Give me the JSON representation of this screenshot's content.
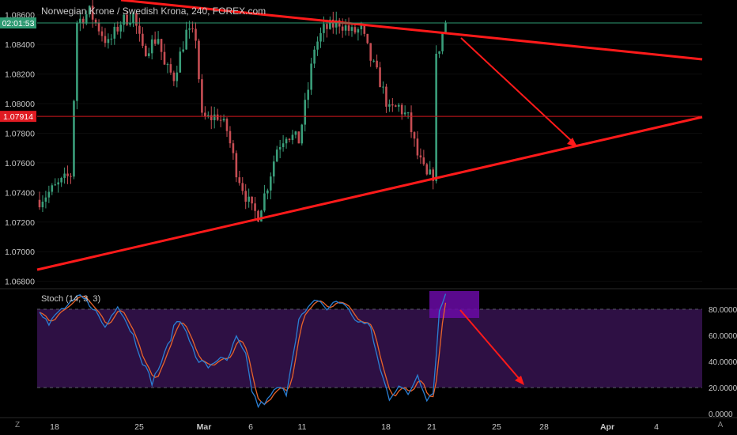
{
  "header": {
    "symbol_title": "Norwegian Krone / Swedish Krona, 240, FOREX.com"
  },
  "price_axis": {
    "ticks": [
      "1.08600",
      "1.08400",
      "1.08200",
      "1.08000",
      "1.07800",
      "1.07600",
      "1.07400",
      "1.07200",
      "1.07000",
      "1.06800"
    ],
    "countdown_label": "02:01:53",
    "marker_label": "1.07914",
    "marker_value": 1.07914,
    "last_price": 1.08545
  },
  "stoch_panel": {
    "title": "Stoch (14, 3, 3)",
    "ticks": [
      "80.0000",
      "60.0000",
      "40.0000",
      "20.0000",
      "0.0000"
    ]
  },
  "time_axis": {
    "labels": [
      "18",
      "25",
      "Mar",
      "6",
      "11",
      "18",
      "21",
      "25",
      "28",
      "Apr",
      "4"
    ]
  },
  "bottom_bar": {
    "left_button": "Z",
    "right_button": "A"
  },
  "colors": {
    "background": "#000000",
    "up_candle": "#3a9e7a",
    "down_candle": "#c64d53",
    "trendline": "#ff1a1a",
    "stoch_k": "#2a7fd4",
    "stoch_d": "#e8632a",
    "stoch_band": "#2e1044",
    "highlight_box": "#6a0aa6",
    "axis_text": "#c8c8c8",
    "countdown_bg": "#2e9a72",
    "marker_bg": "#e01b22"
  },
  "chart_data": {
    "type": "candlestick",
    "title": "Norwegian Krone / Swedish Krona, 240, FOREX.com",
    "x_labels": [
      "18",
      "25",
      "Mar",
      "6",
      "11",
      "18",
      "21",
      "25",
      "28",
      "Apr",
      "4"
    ],
    "ylim": [
      1.0675,
      1.087
    ],
    "anchors": [
      {
        "i": 0,
        "p": 1.0735
      },
      {
        "i": 6,
        "p": 1.0745
      },
      {
        "i": 10,
        "p": 1.0752
      },
      {
        "i": 12,
        "p": 1.0855
      },
      {
        "i": 16,
        "p": 1.0862
      },
      {
        "i": 22,
        "p": 1.084
      },
      {
        "i": 26,
        "p": 1.0855
      },
      {
        "i": 30,
        "p": 1.086
      },
      {
        "i": 33,
        "p": 1.0835
      },
      {
        "i": 38,
        "p": 1.0845
      },
      {
        "i": 40,
        "p": 1.0825
      },
      {
        "i": 43,
        "p": 1.0818
      },
      {
        "i": 47,
        "p": 1.0848
      },
      {
        "i": 50,
        "p": 1.0845
      },
      {
        "i": 52,
        "p": 1.079
      },
      {
        "i": 54,
        "p": 1.079
      },
      {
        "i": 57,
        "p": 1.0792
      },
      {
        "i": 60,
        "p": 1.0782
      },
      {
        "i": 63,
        "p": 1.0755
      },
      {
        "i": 66,
        "p": 1.0738
      },
      {
        "i": 68,
        "p": 1.0728
      },
      {
        "i": 70,
        "p": 1.0725
      },
      {
        "i": 73,
        "p": 1.0745
      },
      {
        "i": 76,
        "p": 1.077
      },
      {
        "i": 79,
        "p": 1.078
      },
      {
        "i": 83,
        "p": 1.0775
      },
      {
        "i": 86,
        "p": 1.081
      },
      {
        "i": 88,
        "p": 1.0838
      },
      {
        "i": 91,
        "p": 1.085
      },
      {
        "i": 96,
        "p": 1.0855
      },
      {
        "i": 100,
        "p": 1.0848
      },
      {
        "i": 103,
        "p": 1.085
      },
      {
        "i": 106,
        "p": 1.083
      },
      {
        "i": 109,
        "p": 1.0815
      },
      {
        "i": 112,
        "p": 1.0795
      },
      {
        "i": 115,
        "p": 1.0798
      },
      {
        "i": 118,
        "p": 1.079
      },
      {
        "i": 121,
        "p": 1.0765
      },
      {
        "i": 124,
        "p": 1.075
      },
      {
        "i": 126,
        "p": 1.0752
      },
      {
        "i": 127,
        "p": 1.083
      },
      {
        "i": 130,
        "p": 1.0855
      }
    ],
    "stochastic": {
      "name": "Stoch (14, 3, 3)",
      "levels": [
        80,
        20
      ],
      "ylim": [
        0,
        100
      ],
      "k_anchors": [
        {
          "i": 0,
          "v": 80
        },
        {
          "i": 3,
          "v": 68
        },
        {
          "i": 6,
          "v": 78
        },
        {
          "i": 10,
          "v": 84
        },
        {
          "i": 13,
          "v": 90
        },
        {
          "i": 17,
          "v": 82
        },
        {
          "i": 21,
          "v": 66
        },
        {
          "i": 25,
          "v": 84
        },
        {
          "i": 30,
          "v": 60
        },
        {
          "i": 33,
          "v": 40
        },
        {
          "i": 36,
          "v": 24
        },
        {
          "i": 40,
          "v": 45
        },
        {
          "i": 44,
          "v": 72
        },
        {
          "i": 47,
          "v": 65
        },
        {
          "i": 50,
          "v": 42
        },
        {
          "i": 54,
          "v": 36
        },
        {
          "i": 57,
          "v": 42
        },
        {
          "i": 60,
          "v": 40
        },
        {
          "i": 63,
          "v": 58
        },
        {
          "i": 66,
          "v": 44
        },
        {
          "i": 68,
          "v": 18
        },
        {
          "i": 70,
          "v": 6
        },
        {
          "i": 73,
          "v": 10
        },
        {
          "i": 76,
          "v": 20
        },
        {
          "i": 79,
          "v": 16
        },
        {
          "i": 83,
          "v": 72
        },
        {
          "i": 86,
          "v": 80
        },
        {
          "i": 89,
          "v": 88
        },
        {
          "i": 92,
          "v": 80
        },
        {
          "i": 95,
          "v": 86
        },
        {
          "i": 98,
          "v": 84
        },
        {
          "i": 100,
          "v": 74
        },
        {
          "i": 103,
          "v": 70
        },
        {
          "i": 106,
          "v": 66
        },
        {
          "i": 109,
          "v": 34
        },
        {
          "i": 112,
          "v": 12
        },
        {
          "i": 115,
          "v": 22
        },
        {
          "i": 118,
          "v": 14
        },
        {
          "i": 121,
          "v": 30
        },
        {
          "i": 124,
          "v": 12
        },
        {
          "i": 126,
          "v": 16
        },
        {
          "i": 128,
          "v": 78
        },
        {
          "i": 130,
          "v": 92
        }
      ]
    }
  }
}
